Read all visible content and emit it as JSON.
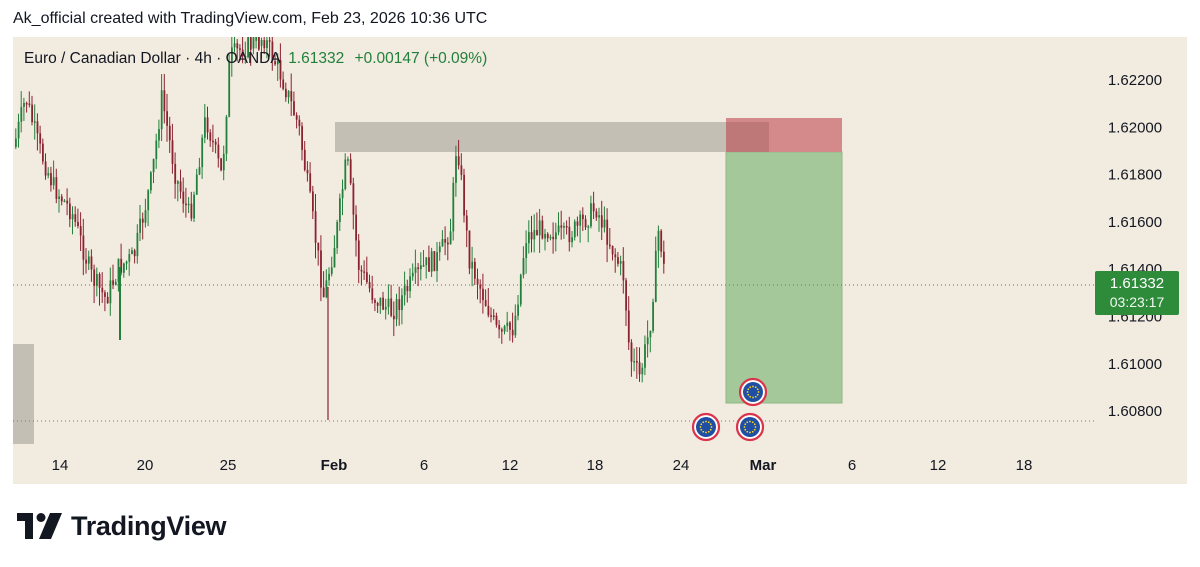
{
  "attribution": "Ak_official created with TradingView.com, Feb 23, 2026 10:36 UTC",
  "chart_data": {
    "type": "candlestick",
    "symbol_title": "Euro / Canadian Dollar · 4h · OANDA",
    "last_price": "1.61332",
    "change": "+0.00147 (+0.09%)",
    "price_tag": {
      "price": "1.61332",
      "countdown": "03:23:17"
    },
    "y_axis": {
      "ticks": [
        "1.62200",
        "1.62000",
        "1.61800",
        "1.61600",
        "1.61400",
        "1.61200",
        "1.61000",
        "1.60800"
      ],
      "range": [
        1.6062,
        1.624
      ]
    },
    "x_axis": {
      "ticks": [
        "14",
        "20",
        "25",
        "Feb",
        "6",
        "12",
        "18",
        "24",
        "Mar",
        "6",
        "12",
        "18"
      ]
    },
    "current_price_line": 1.61332,
    "support_line": 1.60765,
    "zones": [
      {
        "name": "supply-zone",
        "from": 1.619,
        "to": 1.6203,
        "color": "#c4bfb5"
      },
      {
        "name": "stop-loss-zone",
        "from": 1.619,
        "to": 1.6204,
        "color": "#d48a8a"
      },
      {
        "name": "take-profit-zone",
        "from": 1.6085,
        "to": 1.619,
        "color": "#a4c89a"
      }
    ],
    "event_markers": [
      "eu-flag",
      "eu-flag",
      "eu-flag"
    ],
    "colors": {
      "up": "#22803c",
      "down": "#8b2230",
      "background": "#f2ebdf"
    }
  },
  "logo": {
    "text": "TradingView"
  }
}
